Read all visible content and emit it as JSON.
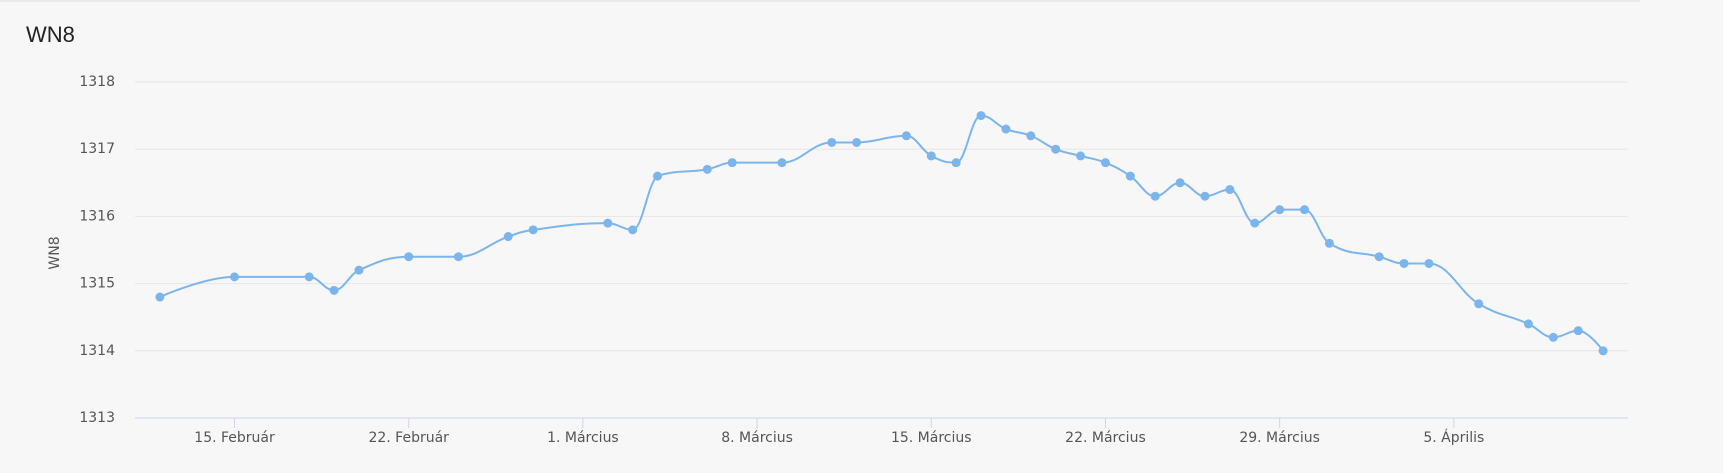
{
  "chart_data": {
    "type": "line",
    "title": "WN8",
    "y_label": "WN8",
    "x": [
      "02-12",
      "02-15",
      "02-18",
      "02-19",
      "02-20",
      "02-22",
      "02-24",
      "02-26",
      "02-27",
      "03-02",
      "03-03",
      "03-04",
      "03-06",
      "03-07",
      "03-09",
      "03-11",
      "03-12",
      "03-14",
      "03-15",
      "03-16",
      "03-17",
      "03-18",
      "03-19",
      "03-20",
      "03-21",
      "03-22",
      "03-23",
      "03-24",
      "03-25",
      "03-26",
      "03-27",
      "03-28",
      "03-29",
      "03-30",
      "03-31",
      "04-02",
      "04-03",
      "04-04",
      "04-06",
      "04-08",
      "04-09",
      "04-10",
      "04-11"
    ],
    "series": [
      {
        "color": "#7cb5ec",
        "values": [
          1314.8,
          1315.1,
          1315.1,
          1314.9,
          1315.2,
          1315.4,
          1315.4,
          1315.7,
          1315.8,
          1315.9,
          1315.8,
          1316.6,
          1316.7,
          1316.8,
          1316.8,
          1317.1,
          1317.1,
          1317.2,
          1316.9,
          1316.8,
          1317.5,
          1317.3,
          1317.2,
          1317.0,
          1316.9,
          1316.8,
          1316.6,
          1316.3,
          1316.5,
          1316.3,
          1316.4,
          1315.9,
          1316.1,
          1316.1,
          1315.6,
          1315.4,
          1315.3,
          1315.3,
          1314.7,
          1314.4,
          1314.2,
          1314.3,
          1314.0
        ]
      }
    ],
    "xlim": [
      "02-11",
      "04-12"
    ],
    "xticks": [
      {
        "value": "02-15",
        "label": "15. Február"
      },
      {
        "value": "02-22",
        "label": "22. Február"
      },
      {
        "value": "03-01",
        "label": "1. Március"
      },
      {
        "value": "03-08",
        "label": "8. Március"
      },
      {
        "value": "03-15",
        "label": "15. Március"
      },
      {
        "value": "03-22",
        "label": "22. Március"
      },
      {
        "value": "03-29",
        "label": "29. Március"
      },
      {
        "value": "04-05",
        "label": "5. Április"
      }
    ],
    "ylim": [
      1313,
      1318
    ],
    "yticks": [
      1313,
      1314,
      1315,
      1316,
      1317,
      1318
    ],
    "grid": true
  }
}
